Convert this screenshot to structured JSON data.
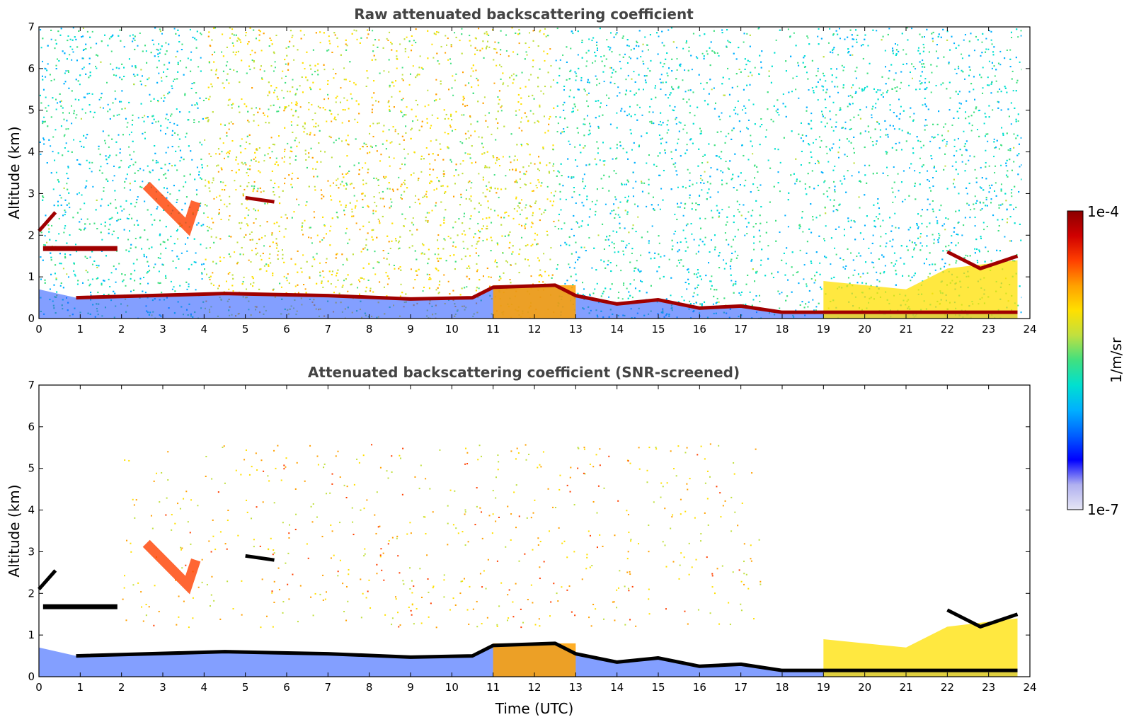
{
  "colors": {
    "colormap": [
      "#e6e6f5",
      "#b0b0f0",
      "#0000ff",
      "#0060ff",
      "#00b0ff",
      "#00e0d0",
      "#40e080",
      "#c0e040",
      "#ffe000",
      "#ffa000",
      "#ff4000",
      "#d00000",
      "#8b0000"
    ],
    "noise_blue": "#1e50ff",
    "layer": "#a00000",
    "screened_layer": "#000000",
    "background": "#ffffff"
  },
  "chart_data": [
    {
      "type": "heatmap",
      "title": "Raw attenuated backscattering coefficient",
      "xlabel": "",
      "ylabel": "Altitude (km)",
      "xlim": [
        0,
        24
      ],
      "ylim": [
        0,
        7
      ],
      "x_ticks": [
        "0",
        "1",
        "2",
        "3",
        "4",
        "5",
        "6",
        "7",
        "8",
        "9",
        "10",
        "11",
        "12",
        "13",
        "14",
        "15",
        "16",
        "17",
        "18",
        "19",
        "20",
        "21",
        "22",
        "23",
        "24"
      ],
      "y_ticks": [
        "0",
        "1",
        "2",
        "3",
        "4",
        "5",
        "6",
        "7"
      ],
      "noise": "full",
      "features": {
        "boundary_layer_top": [
          [
            0.9,
            0.5
          ],
          [
            4.5,
            0.6
          ],
          [
            7,
            0.55
          ],
          [
            9,
            0.47
          ],
          [
            10.5,
            0.5
          ],
          [
            11,
            0.75
          ],
          [
            12.5,
            0.8
          ],
          [
            13,
            0.55
          ],
          [
            14,
            0.35
          ],
          [
            15,
            0.45
          ],
          [
            16,
            0.25
          ],
          [
            17,
            0.3
          ],
          [
            18,
            0.15
          ],
          [
            19,
            0.15
          ],
          [
            21,
            0.15
          ],
          [
            23.7,
            0.15
          ]
        ],
        "low_cloud": [
          [
            0.1,
            1.68
          ],
          [
            1.9,
            1.68
          ]
        ],
        "elevated_layer_early": [
          [
            0,
            2.1
          ],
          [
            0.4,
            2.55
          ]
        ],
        "mid_cloud": [
          [
            5.0,
            2.9
          ],
          [
            5.7,
            2.8
          ]
        ],
        "aerosol_plume": [
          [
            2.6,
            3.2
          ],
          [
            3.0,
            2.8
          ],
          [
            3.6,
            2.2
          ],
          [
            3.8,
            2.8
          ]
        ],
        "evening_clouds": [
          [
            22.0,
            1.6
          ],
          [
            22.8,
            1.2
          ],
          [
            23.7,
            1.5
          ]
        ]
      }
    },
    {
      "type": "heatmap",
      "title": "Attenuated backscattering coefficient (SNR-screened)",
      "xlabel": "Time (UTC)",
      "ylabel": "Altitude (km)",
      "xlim": [
        0,
        24
      ],
      "ylim": [
        0,
        7
      ],
      "x_ticks": [
        "0",
        "1",
        "2",
        "3",
        "4",
        "5",
        "6",
        "7",
        "8",
        "9",
        "10",
        "11",
        "12",
        "13",
        "14",
        "15",
        "16",
        "17",
        "18",
        "19",
        "20",
        "21",
        "22",
        "23",
        "24"
      ],
      "y_ticks": [
        "0",
        "1",
        "2",
        "3",
        "4",
        "5",
        "6",
        "7"
      ],
      "noise": "screened",
      "features": {
        "boundary_layer_top": [
          [
            0.9,
            0.5
          ],
          [
            4.5,
            0.6
          ],
          [
            7,
            0.55
          ],
          [
            9,
            0.47
          ],
          [
            10.5,
            0.5
          ],
          [
            11,
            0.75
          ],
          [
            12.5,
            0.8
          ],
          [
            13,
            0.55
          ],
          [
            14,
            0.35
          ],
          [
            15,
            0.45
          ],
          [
            16,
            0.25
          ],
          [
            17,
            0.3
          ],
          [
            18,
            0.15
          ],
          [
            19,
            0.15
          ],
          [
            21,
            0.15
          ],
          [
            23.7,
            0.15
          ]
        ],
        "low_cloud": [
          [
            0.1,
            1.68
          ],
          [
            1.9,
            1.68
          ]
        ],
        "elevated_layer_early": [
          [
            0,
            2.1
          ],
          [
            0.4,
            2.55
          ]
        ],
        "mid_cloud": [
          [
            5.0,
            2.9
          ],
          [
            5.7,
            2.8
          ]
        ],
        "aerosol_plume": [
          [
            2.6,
            3.2
          ],
          [
            3.0,
            2.8
          ],
          [
            3.6,
            2.2
          ],
          [
            3.8,
            2.8
          ]
        ],
        "evening_clouds": [
          [
            22.0,
            1.6
          ],
          [
            22.8,
            1.2
          ],
          [
            23.7,
            1.5
          ]
        ]
      }
    }
  ],
  "colorbar": {
    "max_label": "1e-4",
    "min_label": "1e-7",
    "unit_label": "1/m/sr",
    "range": [
      "1e-7",
      "1e-4"
    ]
  }
}
